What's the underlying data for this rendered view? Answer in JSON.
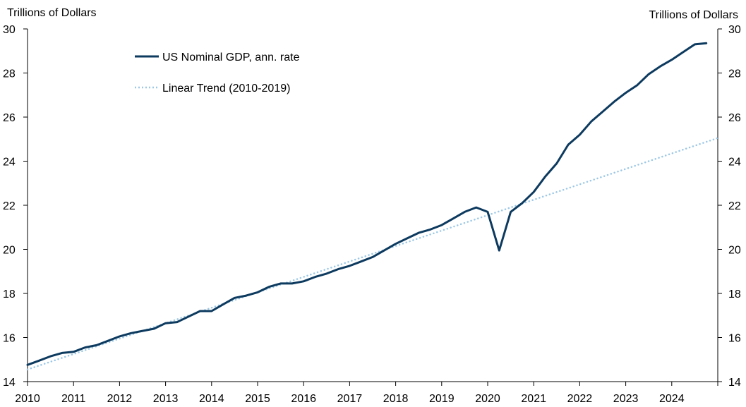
{
  "chart_data": {
    "type": "line",
    "title": "",
    "ylabel_left": "Trillions of Dollars",
    "ylabel_right": "Trillions of Dollars",
    "xlabel": "",
    "ylim": [
      14,
      30
    ],
    "xlim": [
      2010,
      2025
    ],
    "y_ticks": [
      14,
      16,
      18,
      20,
      22,
      24,
      26,
      28,
      30
    ],
    "x_ticks": [
      2010,
      2011,
      2012,
      2013,
      2014,
      2015,
      2016,
      2017,
      2018,
      2019,
      2020,
      2021,
      2022,
      2023,
      2024
    ],
    "grid": false,
    "legend_position": "top-left",
    "series": [
      {
        "name": "US Nominal GDP, ann. rate",
        "style": "solid",
        "color": "#0d3a5f",
        "x": [
          2010.0,
          2010.25,
          2010.5,
          2010.75,
          2011.0,
          2011.25,
          2011.5,
          2011.75,
          2012.0,
          2012.25,
          2012.5,
          2012.75,
          2013.0,
          2013.25,
          2013.5,
          2013.75,
          2014.0,
          2014.25,
          2014.5,
          2014.75,
          2015.0,
          2015.25,
          2015.5,
          2015.75,
          2016.0,
          2016.25,
          2016.5,
          2016.75,
          2017.0,
          2017.25,
          2017.5,
          2017.75,
          2018.0,
          2018.25,
          2018.5,
          2018.75,
          2019.0,
          2019.25,
          2019.5,
          2019.75,
          2020.0,
          2020.25,
          2020.5,
          2020.75,
          2021.0,
          2021.25,
          2021.5,
          2021.75,
          2022.0,
          2022.25,
          2022.5,
          2022.75,
          2023.0,
          2023.25,
          2023.5,
          2023.75,
          2024.0,
          2024.25,
          2024.5,
          2024.75
        ],
        "values": [
          14.76,
          14.95,
          15.15,
          15.3,
          15.35,
          15.55,
          15.65,
          15.85,
          16.05,
          16.2,
          16.3,
          16.4,
          16.65,
          16.7,
          16.95,
          17.2,
          17.2,
          17.5,
          17.8,
          17.9,
          18.05,
          18.3,
          18.45,
          18.45,
          18.55,
          18.75,
          18.9,
          19.1,
          19.25,
          19.45,
          19.65,
          19.95,
          20.25,
          20.5,
          20.75,
          20.9,
          21.1,
          21.4,
          21.7,
          21.9,
          21.7,
          19.95,
          21.7,
          22.1,
          22.6,
          23.3,
          23.9,
          24.75,
          25.2,
          25.8,
          26.25,
          26.7,
          27.1,
          27.45,
          27.95,
          28.3,
          28.6,
          28.95,
          29.3,
          29.35
        ]
      },
      {
        "name": "Linear Trend (2010-2019)",
        "style": "dotted",
        "color": "#9cc8e6",
        "x": [
          2010.0,
          2025.0
        ],
        "values": [
          14.55,
          25.05
        ]
      }
    ]
  }
}
